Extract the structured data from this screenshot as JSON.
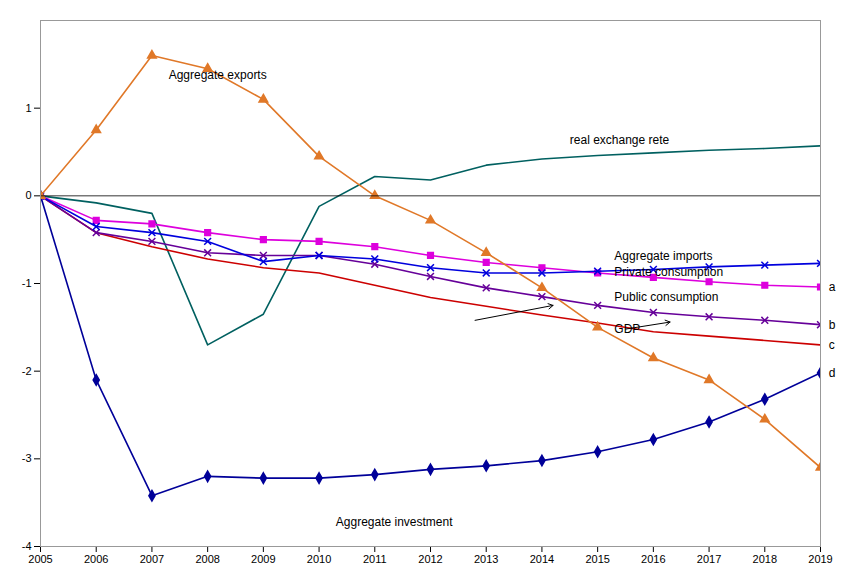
{
  "chart_data": {
    "type": "line",
    "x": [
      2005,
      2006,
      2007,
      2008,
      2009,
      2010,
      2011,
      2012,
      2013,
      2014,
      2015,
      2016,
      2017,
      2018,
      2019
    ],
    "series": [
      {
        "color": "#006060",
        "values": [
          0.0,
          -0.08,
          -0.2,
          -1.7,
          -1.35,
          -0.12,
          0.22,
          0.18,
          0.35,
          0.42,
          0.46,
          0.49,
          0.52,
          0.54,
          0.57
        ]
      },
      {
        "color": "#cc0000",
        "values": [
          0.0,
          -0.42,
          -0.58,
          -0.72,
          -0.82,
          -0.88,
          -1.02,
          -1.16,
          -1.26,
          -1.36,
          -1.45,
          -1.55,
          -1.6,
          -1.65,
          -1.7
        ]
      },
      {
        "color": "#660099",
        "marker": "times",
        "values": [
          0.0,
          -0.42,
          -0.52,
          -0.65,
          -0.68,
          -0.68,
          -0.78,
          -0.92,
          -1.05,
          -1.15,
          -1.25,
          -1.33,
          -1.38,
          -1.42,
          -1.47
        ]
      },
      {
        "color": "#dd00dd",
        "marker": "square",
        "values": [
          0.0,
          -0.28,
          -0.32,
          -0.42,
          -0.5,
          -0.52,
          -0.58,
          -0.68,
          -0.76,
          -0.82,
          -0.88,
          -0.93,
          -0.98,
          -1.02,
          -1.04
        ]
      },
      {
        "color": "#0000dd",
        "marker": "times",
        "values": [
          0.0,
          -0.35,
          -0.42,
          -0.52,
          -0.75,
          -0.68,
          -0.72,
          -0.82,
          -0.88,
          -0.88,
          -0.86,
          -0.84,
          -0.81,
          -0.79,
          -0.77
        ]
      },
      {
        "color": "#000099",
        "marker": "diamond",
        "values": [
          0.0,
          -2.1,
          -3.42,
          -3.2,
          -3.22,
          -3.22,
          -3.18,
          -3.12,
          -3.08,
          -3.02,
          -2.92,
          -2.78,
          -2.58,
          -2.32,
          -2.02
        ]
      },
      {
        "color": "#e07828",
        "marker": "triangle",
        "values": [
          0.0,
          0.75,
          1.6,
          1.45,
          1.1,
          0.45,
          0.0,
          -0.28,
          -0.65,
          -1.05,
          -1.5,
          -1.85,
          -2.1,
          -2.55,
          -3.1
        ]
      }
    ],
    "xlim": [
      2005,
      2019
    ],
    "xticks": [
      2005,
      2006,
      2007,
      2008,
      2009,
      2010,
      2011,
      2012,
      2013,
      2014,
      2015,
      2016,
      2017,
      2018,
      2019
    ],
    "ylim": [
      -4,
      2
    ],
    "yticks": [
      -4,
      -3,
      -2,
      -1,
      0,
      1
    ],
    "grid": false,
    "hlines": [
      0
    ],
    "annotations": [
      {
        "x": 2007.3,
        "y": 1.38,
        "text": "Aggregate exports"
      },
      {
        "x": 2014.5,
        "y": 0.63,
        "text": "real exchange rete"
      },
      {
        "x": 2015.3,
        "y": -0.69,
        "text": "Aggregate imports"
      },
      {
        "x": 2015.3,
        "y": -0.87,
        "text": "Private consumption"
      },
      {
        "x": 2015.3,
        "y": -1.16,
        "text": "Public consumption"
      },
      {
        "x": 2015.3,
        "y": -1.52,
        "text": "GDP"
      },
      {
        "x": 2010.3,
        "y": -3.72,
        "text": "Aggregate investment"
      },
      {
        "x": 2019.15,
        "y": -1.04,
        "text": "a"
      },
      {
        "x": 2019.15,
        "y": -1.47,
        "text": "b"
      },
      {
        "x": 2019.15,
        "y": -1.7,
        "text": "c"
      },
      {
        "x": 2019.15,
        "y": -2.02,
        "text": "d"
      }
    ],
    "arrows": [
      {
        "x1": 2012.8,
        "y1": -1.42,
        "x2": 2014.2,
        "y2": -1.25
      },
      {
        "x1": 2015.5,
        "y1": -1.52,
        "x2": 2016.3,
        "y2": -1.44
      }
    ]
  }
}
